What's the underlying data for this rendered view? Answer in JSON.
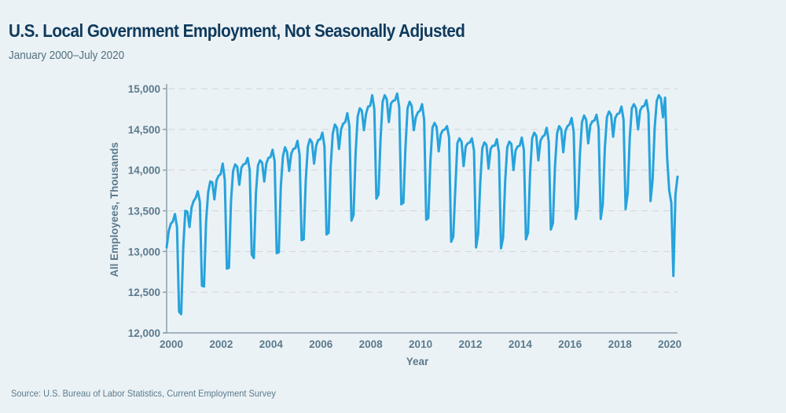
{
  "header": {
    "title": "U.S. Local Government Employment, Not Seasonally Adjusted",
    "subtitle": "January 2000–July 2020"
  },
  "footer": {
    "source": "Source: U.S. Bureau of Labor Statistics, Current Employment Survey"
  },
  "colors": {
    "background": "#ebf2f6",
    "title": "#0f3a5c",
    "axis_text": "#5b7a8c",
    "line": "#27a3dc",
    "axis": "#8aa0ac",
    "grid": "#cfd5d9"
  },
  "chart_data": {
    "type": "line",
    "title": "U.S. Local Government Employment, Not Seasonally Adjusted",
    "subtitle": "January 2000–July 2020",
    "xlabel": "Year",
    "ylabel": "All Employees, Thousands",
    "x_start": "2000-01",
    "x_end": "2020-07",
    "frequency": "monthly",
    "ylim": [
      12000,
      15000
    ],
    "yticks": [
      12000,
      12500,
      13000,
      13500,
      14000,
      14500,
      15000
    ],
    "ytick_labels": [
      "12,000",
      "12,500",
      "13,000",
      "13,500",
      "14,000",
      "14,500",
      "15,000"
    ],
    "xticks": [
      2000,
      2002,
      2004,
      2006,
      2008,
      2010,
      2012,
      2014,
      2016,
      2018,
      2020
    ],
    "xtick_labels": [
      "2000",
      "2002",
      "2004",
      "2006",
      "2008",
      "2010",
      "2012",
      "2014",
      "2016",
      "2018",
      "2020"
    ],
    "grid": "horizontal dashed",
    "legend": "none",
    "series": [
      {
        "name": "Local government employment",
        "values": [
          13050,
          13250,
          13340,
          13370,
          13460,
          13300,
          12260,
          12230,
          13050,
          13500,
          13490,
          13300,
          13540,
          13620,
          13660,
          13740,
          13610,
          12580,
          12570,
          13370,
          13730,
          13860,
          13850,
          13640,
          13870,
          13930,
          13950,
          14080,
          13880,
          12790,
          12800,
          13620,
          13990,
          14070,
          14040,
          13820,
          14030,
          14070,
          14080,
          14150,
          14000,
          12960,
          12920,
          13720,
          14060,
          14120,
          14090,
          13860,
          14080,
          14150,
          14160,
          14250,
          14110,
          12980,
          12990,
          13810,
          14170,
          14280,
          14220,
          13990,
          14200,
          14260,
          14270,
          14360,
          14190,
          13140,
          13150,
          13880,
          14290,
          14380,
          14340,
          14080,
          14300,
          14370,
          14380,
          14460,
          14290,
          13210,
          13230,
          14050,
          14450,
          14560,
          14520,
          14260,
          14500,
          14570,
          14590,
          14700,
          14540,
          13380,
          13450,
          14210,
          14660,
          14760,
          14730,
          14490,
          14690,
          14780,
          14790,
          14920,
          14750,
          13650,
          13700,
          14380,
          14840,
          14920,
          14870,
          14590,
          14820,
          14850,
          14860,
          14940,
          14770,
          13580,
          13600,
          14280,
          14760,
          14840,
          14790,
          14490,
          14650,
          14710,
          14730,
          14810,
          14620,
          13390,
          13410,
          14110,
          14520,
          14580,
          14530,
          14230,
          14440,
          14490,
          14500,
          14540,
          14400,
          13120,
          13180,
          13770,
          14330,
          14390,
          14350,
          14050,
          14290,
          14330,
          14340,
          14390,
          14240,
          13050,
          13220,
          13840,
          14270,
          14340,
          14310,
          14020,
          14260,
          14300,
          14300,
          14380,
          14220,
          13040,
          13170,
          13860,
          14280,
          14350,
          14320,
          14000,
          14240,
          14290,
          14300,
          14400,
          14250,
          13150,
          13230,
          13960,
          14390,
          14460,
          14420,
          14120,
          14360,
          14410,
          14430,
          14520,
          14350,
          13270,
          13350,
          14050,
          14450,
          14540,
          14500,
          14220,
          14480,
          14540,
          14560,
          14640,
          14470,
          13400,
          13550,
          14200,
          14590,
          14670,
          14620,
          14330,
          14550,
          14600,
          14610,
          14680,
          14520,
          13400,
          13580,
          14270,
          14650,
          14720,
          14680,
          14410,
          14640,
          14690,
          14700,
          14780,
          14620,
          13520,
          13720,
          14400,
          14760,
          14810,
          14760,
          14500,
          14730,
          14780,
          14790,
          14860,
          14700,
          13620,
          13880,
          14520,
          14850,
          14920,
          14880,
          14650,
          14890,
          14150,
          13750,
          13600,
          12700,
          13700,
          13920
        ]
      }
    ]
  }
}
